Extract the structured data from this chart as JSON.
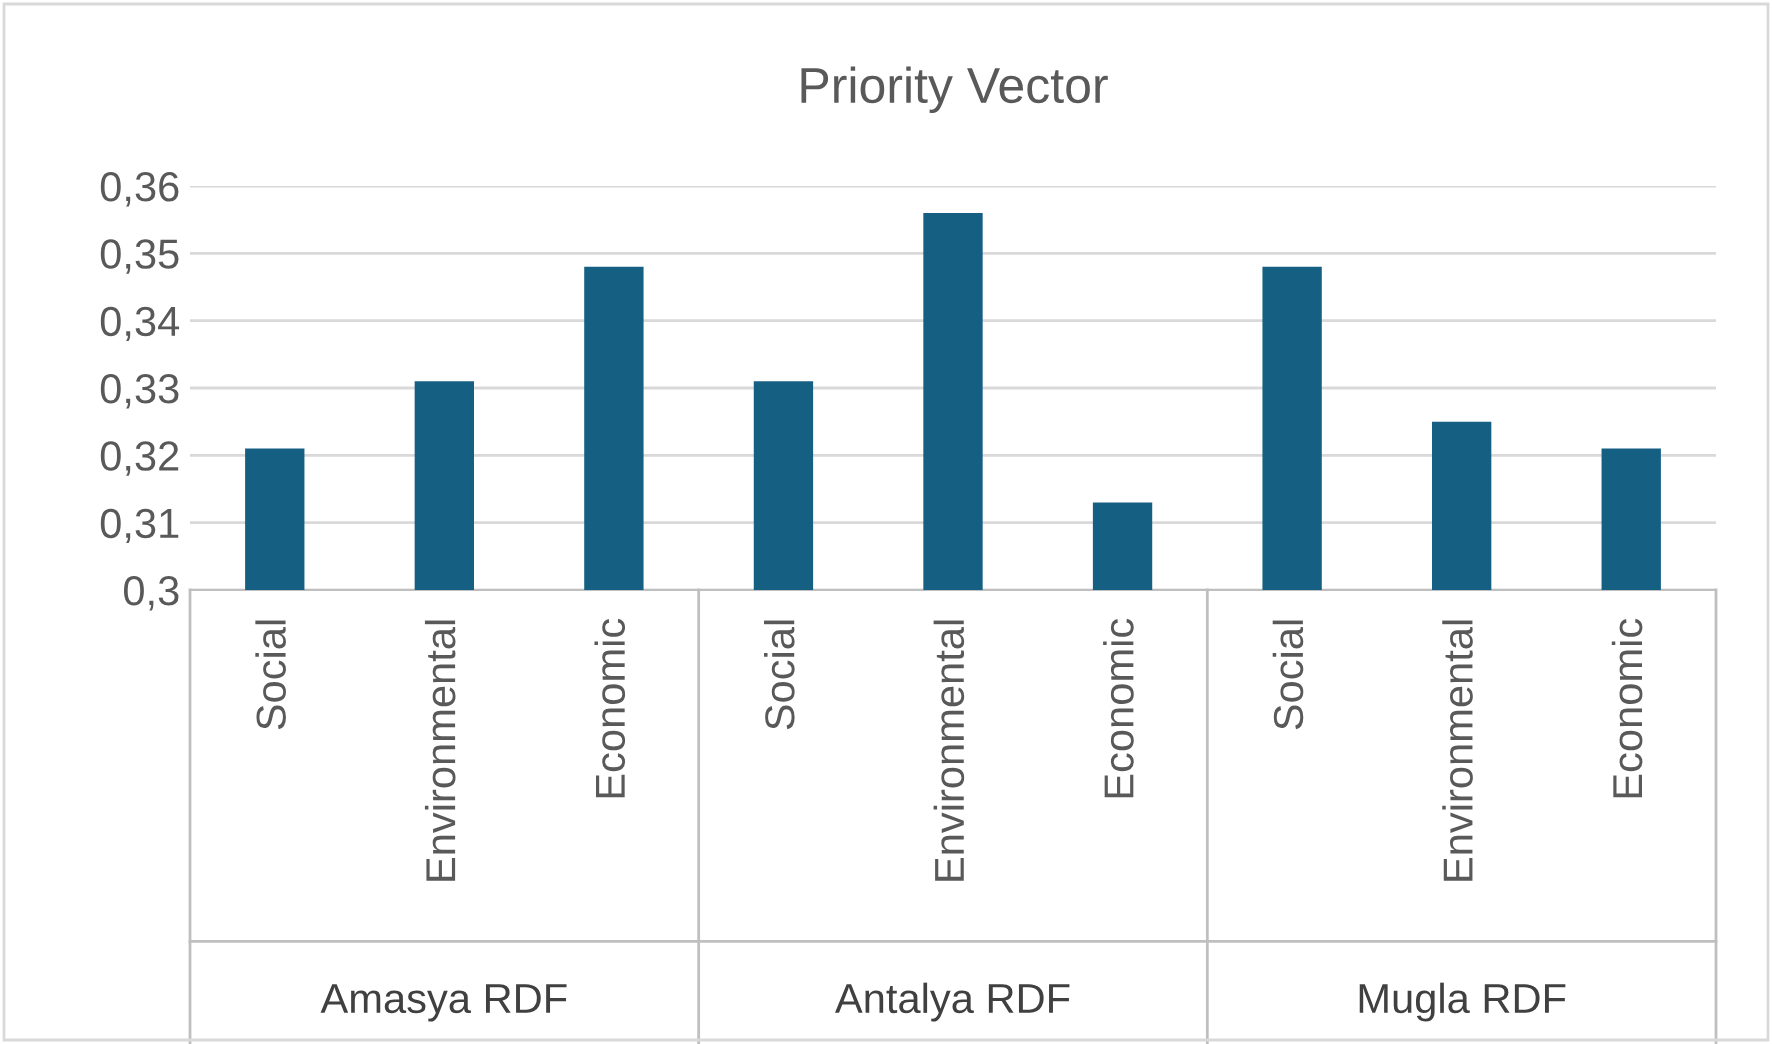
{
  "chart_data": {
    "type": "bar",
    "title": "Priority Vector",
    "categories": [
      "Social",
      "Environmental",
      "Economic",
      "Social",
      "Environmental",
      "Economic",
      "Social",
      "Environmental",
      "Economic"
    ],
    "values": [
      0.321,
      0.331,
      0.348,
      0.331,
      0.356,
      0.313,
      0.348,
      0.325,
      0.321
    ],
    "color": "#155f83",
    "annotations": [
      "Amasya RDF",
      "Antalya RDF",
      "Mugla RDF"
    ],
    "ylim": [
      0.3,
      0.36
    ],
    "yticks": [
      {
        "value": 0.3,
        "label": "0,3"
      },
      {
        "value": 0.31,
        "label": "0,31"
      },
      {
        "value": 0.32,
        "label": "0,32"
      },
      {
        "value": 0.33,
        "label": "0,33"
      },
      {
        "value": 0.34,
        "label": "0,34"
      },
      {
        "value": 0.35,
        "label": "0,35"
      },
      {
        "value": 0.36,
        "label": "0,36"
      }
    ],
    "grid": "y",
    "legend": false
  }
}
